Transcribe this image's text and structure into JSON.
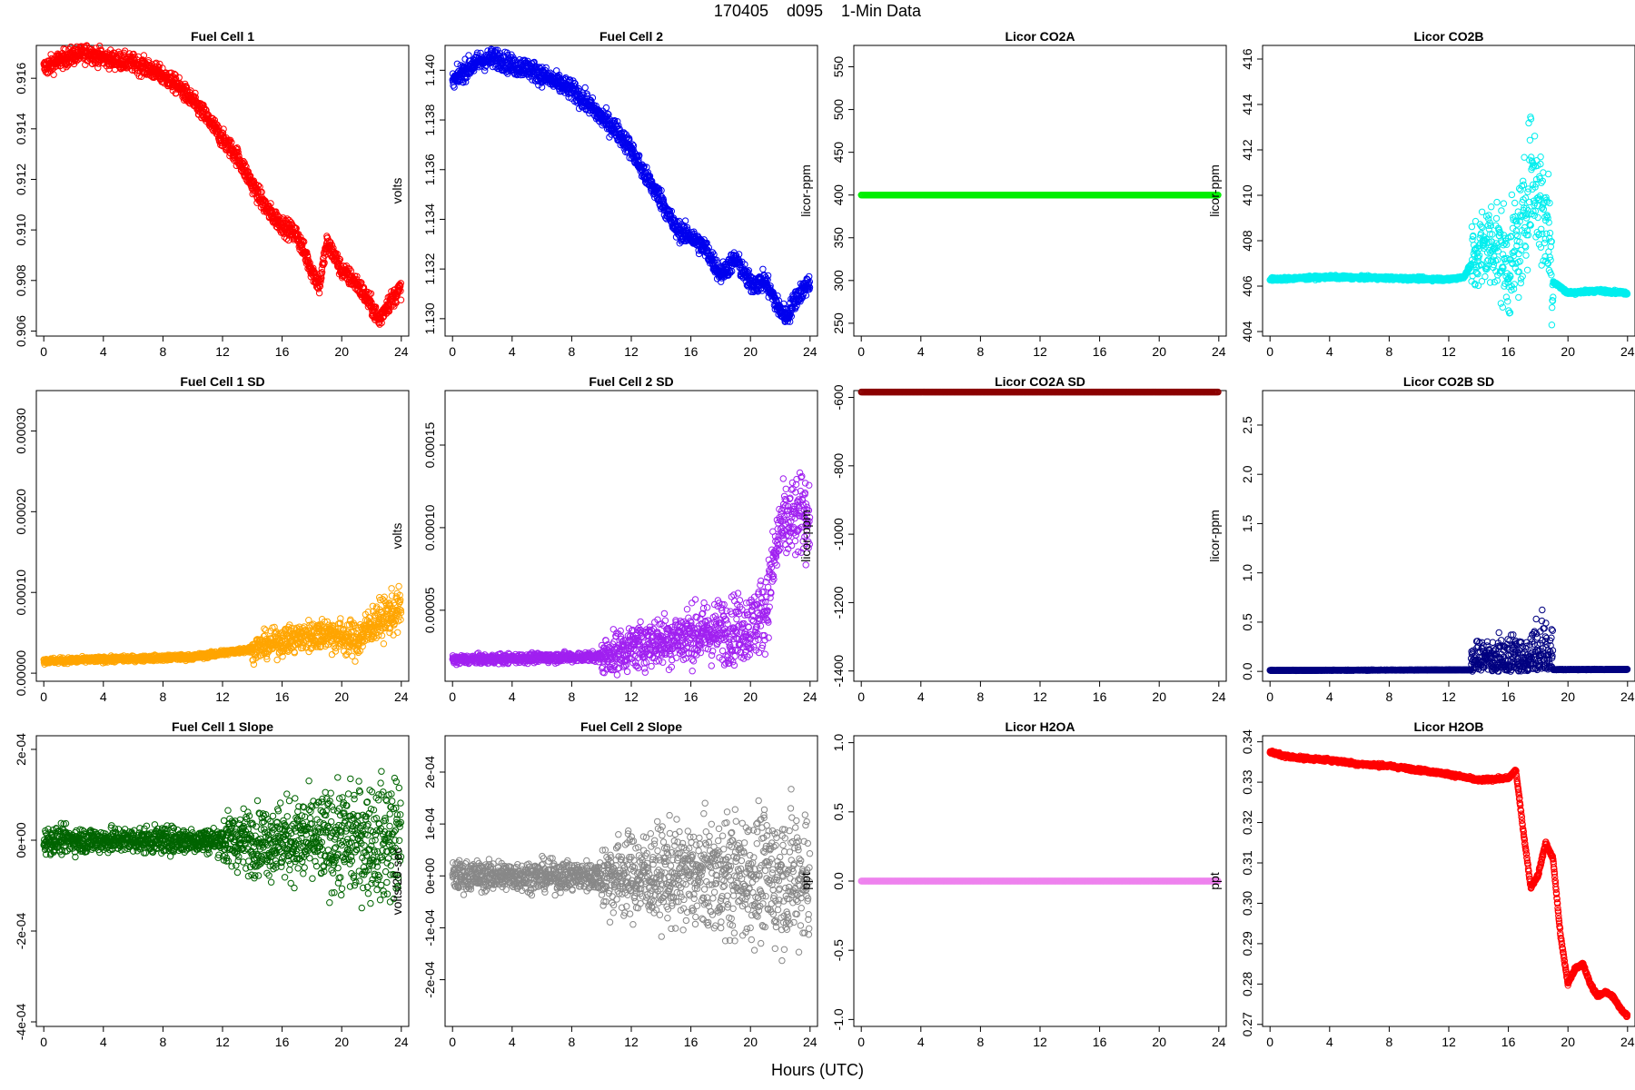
{
  "page": {
    "title": "170405    d095    1-Min Data",
    "xlabel": "Hours (UTC)"
  },
  "chart_data": [
    {
      "id": "fc1",
      "type": "scatter",
      "title": "Fuel Cell 1",
      "ylabel": "volts",
      "color": "#ff0000",
      "xlim": [
        -0.5,
        24.5
      ],
      "ylim": [
        0.9058,
        0.9173
      ],
      "xticks": [
        0,
        4,
        8,
        12,
        16,
        20,
        24
      ],
      "yticks": [
        0.906,
        0.908,
        0.91,
        0.912,
        0.914,
        0.916
      ],
      "ytick_labels": [
        "0.906",
        "0.908",
        "0.910",
        "0.912",
        "0.914",
        "0.916"
      ],
      "profile": [
        [
          0,
          0.9164
        ],
        [
          1,
          0.9167
        ],
        [
          2,
          0.9169
        ],
        [
          3,
          0.917
        ],
        [
          4,
          0.9168
        ],
        [
          5,
          0.9167
        ],
        [
          6,
          0.9166
        ],
        [
          7,
          0.9164
        ],
        [
          8,
          0.9161
        ],
        [
          9,
          0.9157
        ],
        [
          10,
          0.9151
        ],
        [
          11,
          0.9144
        ],
        [
          12,
          0.9136
        ],
        [
          13,
          0.9129
        ],
        [
          14,
          0.9118
        ],
        [
          15,
          0.9108
        ],
        [
          16,
          0.9102
        ],
        [
          17,
          0.9098
        ],
        [
          18,
          0.9084
        ],
        [
          18.5,
          0.9078
        ],
        [
          19,
          0.9095
        ],
        [
          19.5,
          0.909
        ],
        [
          20,
          0.9084
        ],
        [
          21,
          0.9079
        ],
        [
          22,
          0.907
        ],
        [
          22.5,
          0.9064
        ],
        [
          23,
          0.907
        ],
        [
          24,
          0.9077
        ]
      ],
      "noise": 0.00025
    },
    {
      "id": "fc2",
      "type": "scatter",
      "title": "Fuel Cell 2",
      "ylabel": "volts",
      "color": "#0000ee",
      "xlim": [
        -0.5,
        24.5
      ],
      "ylim": [
        1.1293,
        1.141
      ],
      "xticks": [
        0,
        4,
        8,
        12,
        16,
        20,
        24
      ],
      "yticks": [
        1.13,
        1.132,
        1.134,
        1.136,
        1.138,
        1.14
      ],
      "ytick_labels": [
        "1.130",
        "1.132",
        "1.134",
        "1.136",
        "1.138",
        "1.140"
      ],
      "profile": [
        [
          0,
          1.1395
        ],
        [
          1,
          1.1401
        ],
        [
          2,
          1.1404
        ],
        [
          3,
          1.1405
        ],
        [
          4,
          1.1402
        ],
        [
          5,
          1.1401
        ],
        [
          6,
          1.1398
        ],
        [
          7,
          1.1395
        ],
        [
          8,
          1.1392
        ],
        [
          9,
          1.1387
        ],
        [
          10,
          1.1381
        ],
        [
          11,
          1.1376
        ],
        [
          12,
          1.1368
        ],
        [
          13,
          1.1357
        ],
        [
          14,
          1.1348
        ],
        [
          15,
          1.1336
        ],
        [
          16,
          1.1333
        ],
        [
          17,
          1.1328
        ],
        [
          18,
          1.1318
        ],
        [
          19,
          1.1324
        ],
        [
          20,
          1.1314
        ],
        [
          21,
          1.1315
        ],
        [
          22,
          1.1303
        ],
        [
          22.5,
          1.1301
        ],
        [
          23,
          1.1308
        ],
        [
          24,
          1.1315
        ]
      ],
      "noise": 0.00028
    },
    {
      "id": "co2a",
      "type": "scatter",
      "title": "Licor CO2A",
      "ylabel": "licor-ppm",
      "color": "#00ee00",
      "xlim": [
        -0.5,
        24.5
      ],
      "ylim": [
        235,
        575
      ],
      "xticks": [
        0,
        4,
        8,
        12,
        16,
        20,
        24
      ],
      "yticks": [
        250,
        300,
        350,
        400,
        450,
        500,
        550
      ],
      "ytick_labels": [
        "250",
        "300",
        "350",
        "400",
        "450",
        "500",
        "550"
      ],
      "profile": [
        [
          0,
          400
        ],
        [
          24,
          400
        ]
      ],
      "noise": 0
    },
    {
      "id": "co2b",
      "type": "scatter",
      "title": "Licor CO2B",
      "ylabel": "licor-ppm",
      "color": "#00eeee",
      "xlim": [
        -0.5,
        24.5
      ],
      "ylim": [
        403.8,
        416.6
      ],
      "xticks": [
        0,
        4,
        8,
        12,
        16,
        20,
        24
      ],
      "yticks": [
        404,
        406,
        408,
        410,
        412,
        414,
        416
      ],
      "ytick_labels": [
        "404",
        "406",
        "408",
        "410",
        "412",
        "414",
        "416"
      ],
      "profile": [
        [
          0,
          406.3
        ],
        [
          4,
          406.4
        ],
        [
          8,
          406.35
        ],
        [
          12,
          406.3
        ],
        [
          13,
          406.4
        ],
        [
          14,
          407.5
        ],
        [
          15,
          408
        ],
        [
          16,
          406.8
        ],
        [
          17,
          408.5
        ],
        [
          17.5,
          411
        ],
        [
          18,
          410
        ],
        [
          18.7,
          408.5
        ],
        [
          19,
          406.2
        ],
        [
          20,
          405.7
        ],
        [
          22,
          405.8
        ],
        [
          24,
          405.7
        ]
      ],
      "noise": 0.05,
      "spread": [
        [
          13.5,
          1.2
        ],
        [
          19,
          2.0
        ]
      ]
    },
    {
      "id": "fc1sd",
      "type": "scatter",
      "title": "Fuel Cell 1 SD",
      "ylabel": "volts",
      "color": "#ffa500",
      "xlim": [
        -0.5,
        24.5
      ],
      "ylim": [
        -1e-05,
        0.00035
      ],
      "xticks": [
        0,
        4,
        8,
        12,
        16,
        20,
        24
      ],
      "yticks": [
        0,
        0.0001,
        0.0002,
        0.0003
      ],
      "ytick_labels": [
        "0.00000",
        "0.00010",
        "0.00020",
        "0.00030"
      ],
      "profile": [
        [
          0,
          1.5e-05
        ],
        [
          10,
          2e-05
        ],
        [
          14,
          3e-05
        ],
        [
          16,
          4e-05
        ],
        [
          19,
          5e-05
        ],
        [
          21,
          4e-05
        ],
        [
          22,
          6e-05
        ],
        [
          24,
          8e-05
        ]
      ],
      "noise": 6e-06,
      "spread": [
        [
          14,
          2e-05
        ],
        [
          24,
          4e-05
        ]
      ]
    },
    {
      "id": "fc2sd",
      "type": "scatter",
      "title": "Fuel Cell 2 SD",
      "ylabel": "volts",
      "color": "#a020f0",
      "xlim": [
        -0.5,
        24.5
      ],
      "ylim": [
        7e-06,
        0.000183
      ],
      "xticks": [
        0,
        4,
        8,
        12,
        16,
        20,
        24
      ],
      "yticks": [
        5e-05,
        0.0001,
        0.00015
      ],
      "ytick_labels": [
        "0.00005",
        "0.00010",
        "0.00015"
      ],
      "profile": [
        [
          0,
          2e-05
        ],
        [
          10,
          2.2e-05
        ],
        [
          13,
          3e-05
        ],
        [
          16,
          3.5e-05
        ],
        [
          20,
          4e-05
        ],
        [
          21,
          5e-05
        ],
        [
          22,
          0.0001
        ],
        [
          24,
          0.00011
        ]
      ],
      "noise": 5e-06,
      "spread": [
        [
          10,
          1.5e-05
        ],
        [
          24,
          4e-05
        ]
      ]
    },
    {
      "id": "co2asd",
      "type": "scatter",
      "title": "Licor CO2A SD",
      "ylabel": "licor-ppm",
      "color": "#8b0000",
      "xlim": [
        -0.5,
        24.5
      ],
      "ylim": [
        -1430,
        -580
      ],
      "xticks": [
        0,
        4,
        8,
        12,
        16,
        20,
        24
      ],
      "yticks": [
        -1400,
        -1200,
        -1000,
        -800,
        -600
      ],
      "ytick_labels": [
        "-1400",
        "-1200",
        "-1000",
        "-800",
        "-600"
      ],
      "profile": [
        [
          0,
          -1000
        ],
        [
          24,
          -1000
        ]
      ],
      "noise": 0
    },
    {
      "id": "co2bsd",
      "type": "scatter",
      "title": "Licor CO2B SD",
      "ylabel": "licor-ppm",
      "color": "#000080",
      "xlim": [
        -0.5,
        24.5
      ],
      "ylim": [
        -0.1,
        2.85
      ],
      "xticks": [
        0,
        4,
        8,
        12,
        16,
        20,
        24
      ],
      "yticks": [
        0,
        0.5,
        1,
        1.5,
        2,
        2.5
      ],
      "ytick_labels": [
        "0.0",
        "0.5",
        "1.0",
        "1.5",
        "2.0",
        "2.5"
      ],
      "profile": [
        [
          0,
          0.01
        ],
        [
          24,
          0.02
        ]
      ],
      "noise": 0.005,
      "spread": [
        [
          13.5,
          0.5
        ],
        [
          19,
          0.8
        ]
      ]
    },
    {
      "id": "fc1slope",
      "type": "scatter",
      "title": "Fuel Cell 1 Slope",
      "ylabel": "volts/20-sec",
      "color": "#006400",
      "xlim": [
        -0.5,
        24.5
      ],
      "ylim": [
        -0.00041,
        0.00023
      ],
      "xticks": [
        0,
        4,
        8,
        12,
        16,
        20,
        24
      ],
      "yticks": [
        -0.0004,
        -0.0002,
        0,
        0.0002
      ],
      "ytick_labels": [
        "-4e-04",
        "-2e-04",
        "0e+00",
        "2e-04"
      ],
      "profile": [
        [
          0,
          0
        ],
        [
          24,
          0
        ]
      ],
      "noise": 2e-05,
      "spread": [
        [
          12,
          2e-05
        ],
        [
          24,
          8e-05
        ]
      ]
    },
    {
      "id": "fc2slope",
      "type": "scatter",
      "title": "Fuel Cell 2 Slope",
      "ylabel": "volts/20-sec",
      "color": "#888888",
      "xlim": [
        -0.5,
        24.5
      ],
      "ylim": [
        -0.00029,
        0.00027
      ],
      "xticks": [
        0,
        4,
        8,
        12,
        16,
        20,
        24
      ],
      "yticks": [
        -0.0002,
        -0.0001,
        0,
        0.0001,
        0.0002
      ],
      "ytick_labels": [
        "-2e-04",
        "-1e-04",
        "0e+00",
        "1e-04",
        "2e-04"
      ],
      "profile": [
        [
          0,
          0
        ],
        [
          24,
          0
        ]
      ],
      "noise": 2e-05,
      "spread": [
        [
          10,
          3e-05
        ],
        [
          24,
          8e-05
        ]
      ]
    },
    {
      "id": "h2oa",
      "type": "scatter",
      "title": "Licor H2OA",
      "ylabel": "ppt",
      "color": "#ee82ee",
      "xlim": [
        -0.5,
        24.5
      ],
      "ylim": [
        -1.05,
        1.05
      ],
      "xticks": [
        0,
        4,
        8,
        12,
        16,
        20,
        24
      ],
      "yticks": [
        -1,
        -0.5,
        0,
        0.5,
        1
      ],
      "ytick_labels": [
        "-1.0",
        "-0.5",
        "0.0",
        "0.5",
        "1.0"
      ],
      "profile": [
        [
          0,
          0
        ],
        [
          24,
          0
        ]
      ],
      "noise": 0
    },
    {
      "id": "h2ob",
      "type": "scatter",
      "title": "Licor H2OB",
      "ylabel": "ppt",
      "color": "#ff0000",
      "xlim": [
        -0.5,
        24.5
      ],
      "ylim": [
        0.2695,
        0.3415
      ],
      "xticks": [
        0,
        4,
        8,
        12,
        16,
        20,
        24
      ],
      "yticks": [
        0.27,
        0.28,
        0.29,
        0.3,
        0.31,
        0.32,
        0.33,
        0.34
      ],
      "ytick_labels": [
        "0.27",
        "0.28",
        "0.29",
        "0.30",
        "0.31",
        "0.32",
        "0.33",
        "0.34"
      ],
      "profile": [
        [
          0,
          0.3375
        ],
        [
          1,
          0.3365
        ],
        [
          2,
          0.336
        ],
        [
          4,
          0.3355
        ],
        [
          6,
          0.3345
        ],
        [
          8,
          0.334
        ],
        [
          10,
          0.333
        ],
        [
          12,
          0.332
        ],
        [
          14,
          0.3305
        ],
        [
          16,
          0.331
        ],
        [
          16.5,
          0.333
        ],
        [
          17,
          0.318
        ],
        [
          17.5,
          0.304
        ],
        [
          18,
          0.307
        ],
        [
          18.5,
          0.315
        ],
        [
          19,
          0.311
        ],
        [
          19.5,
          0.292
        ],
        [
          20,
          0.28
        ],
        [
          20.5,
          0.284
        ],
        [
          21,
          0.285
        ],
        [
          21.5,
          0.28
        ],
        [
          22,
          0.277
        ],
        [
          22.5,
          0.278
        ],
        [
          23,
          0.277
        ],
        [
          23.5,
          0.274
        ],
        [
          24,
          0.272
        ]
      ],
      "noise": 0.0003
    }
  ]
}
